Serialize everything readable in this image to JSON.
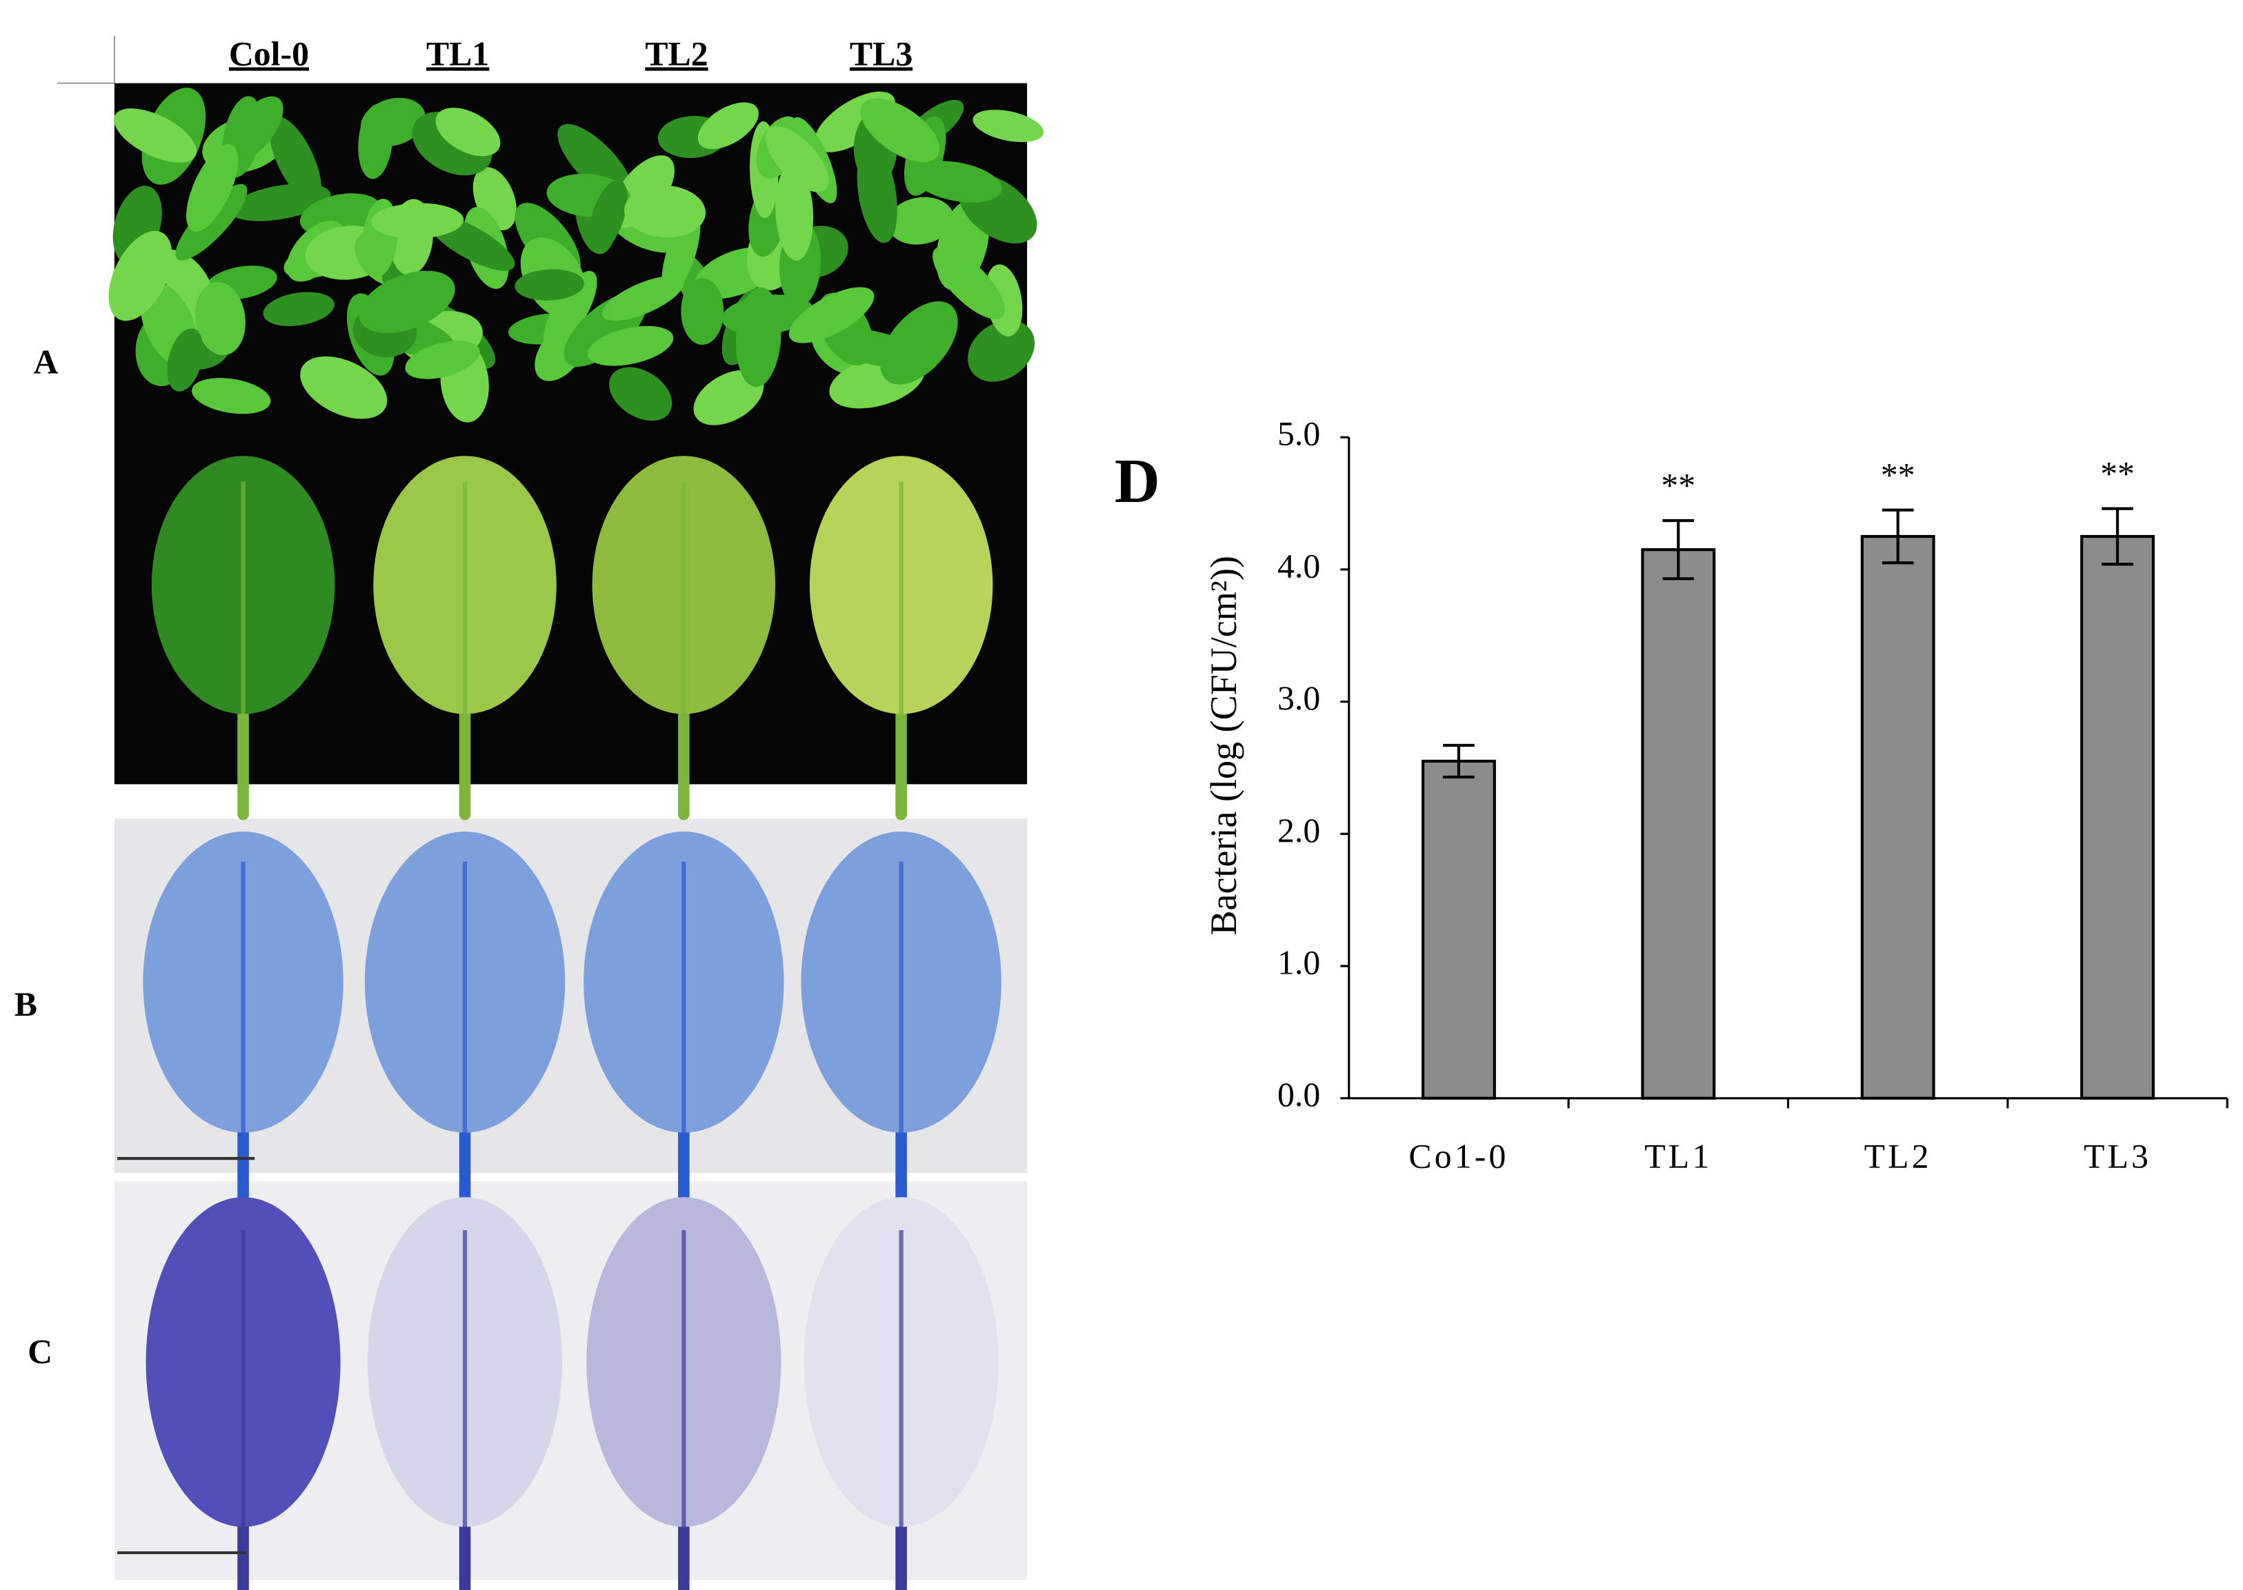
{
  "panel_labels": [
    "A",
    "B",
    "C"
  ],
  "column_labels": [
    "Col-0",
    "TL1",
    "TL2",
    "TL3"
  ],
  "chart_data": {
    "type": "bar",
    "panel_label": "D",
    "y_label": "Bacteria (log (CFU/cm²))",
    "categories": [
      "Co1-0",
      "TL1",
      "TL2",
      "TL3"
    ],
    "values": [
      2.55,
      4.15,
      4.25,
      4.25
    ],
    "errors": [
      0.12,
      0.22,
      0.2,
      0.21
    ],
    "annotations": [
      {
        "category": "TL1",
        "text": "**"
      },
      {
        "category": "TL2",
        "text": "**"
      },
      {
        "category": "TL3",
        "text": "**"
      }
    ],
    "color": "#8c8c8c",
    "ylim": [
      0,
      5
    ],
    "yticks": [
      {
        "value": 0,
        "label": "0.0"
      },
      {
        "value": 1,
        "label": "1.0"
      },
      {
        "value": 2,
        "label": "2.0"
      },
      {
        "value": 3,
        "label": "3.0"
      },
      {
        "value": 4,
        "label": "4.0"
      },
      {
        "value": 5,
        "label": "5.0"
      }
    ],
    "grid": false
  }
}
